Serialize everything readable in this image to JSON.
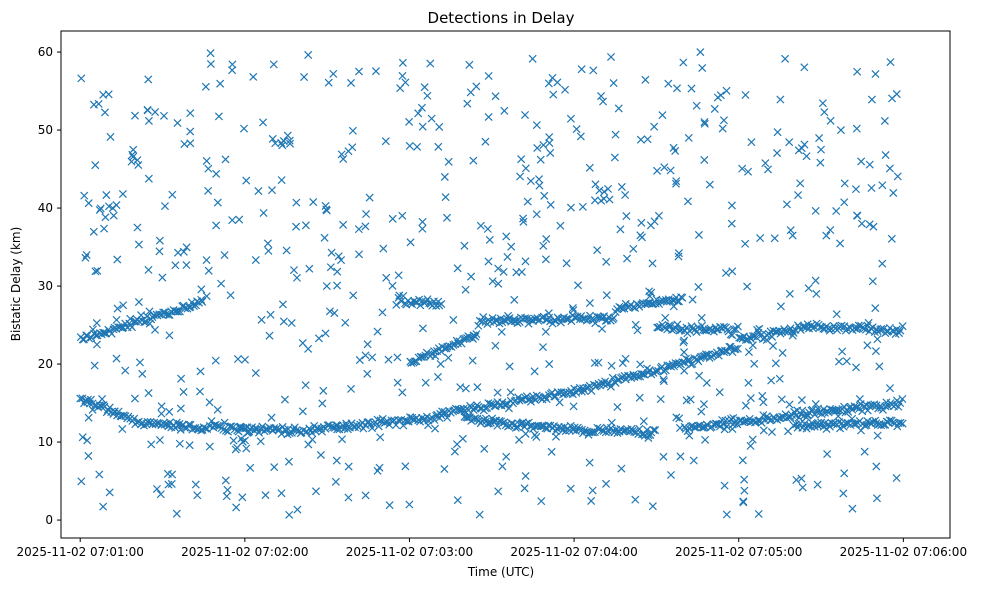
{
  "chart_data": {
    "type": "scatter",
    "title": "Detections in Delay",
    "xlabel": "Time (UTC)",
    "ylabel": "Bistatic Delay (km)",
    "marker": "x",
    "color": "#1f77b4",
    "grid": false,
    "legend": "none",
    "x_start": "2025-11-02 07:01:00",
    "x_end": "2025-11-02 07:06:00",
    "xlim": [
      "2025-11-02 07:00:53",
      "2025-11-02 07:06:17"
    ],
    "ylim": [
      -2.3,
      62.7
    ],
    "x_ticks": [
      "2025-11-02 07:01:00",
      "2025-11-02 07:02:00",
      "2025-11-02 07:03:00",
      "2025-11-02 07:04:00",
      "2025-11-02 07:05:00",
      "2025-11-02 07:06:00"
    ],
    "y_ticks": [
      0,
      10,
      20,
      30,
      40,
      50,
      60
    ],
    "tracks": [
      {
        "x": [
          "2025-11-02 07:01:00",
          "2025-11-02 07:01:45"
        ],
        "y": [
          23.2,
          28.0
        ]
      },
      {
        "x": [
          "2025-11-02 07:01:00",
          "2025-11-02 07:01:25"
        ],
        "y": [
          15.7,
          12.0
        ]
      },
      {
        "x": [
          "2025-11-02 07:01:25",
          "2025-11-02 07:02:20"
        ],
        "y": [
          12.3,
          11.5
        ]
      },
      {
        "x": [
          "2025-11-02 07:02:20",
          "2025-11-02 07:03:10"
        ],
        "y": [
          11.5,
          13.0
        ]
      },
      {
        "x": [
          "2025-11-02 07:03:10",
          "2025-11-02 07:04:00"
        ],
        "y": [
          13.5,
          16.5
        ]
      },
      {
        "x": [
          "2025-11-02 07:04:00",
          "2025-11-02 07:05:00"
        ],
        "y": [
          16.5,
          22.0
        ]
      },
      {
        "x": [
          "2025-11-02 07:03:20",
          "2025-11-02 07:04:00"
        ],
        "y": [
          13.0,
          11.5
        ]
      },
      {
        "x": [
          "2025-11-02 07:04:00",
          "2025-11-02 07:04:30"
        ],
        "y": [
          11.5,
          11.2
        ]
      },
      {
        "x": [
          "2025-11-02 07:04:40",
          "2025-11-02 07:06:00"
        ],
        "y": [
          11.8,
          15.0
        ]
      },
      {
        "x": [
          "2025-11-02 07:05:20",
          "2025-11-02 07:06:00"
        ],
        "y": [
          12.0,
          12.5
        ]
      },
      {
        "x": [
          "2025-11-02 07:02:55",
          "2025-11-02 07:03:12"
        ],
        "y": [
          28.0,
          27.8
        ]
      },
      {
        "x": [
          "2025-11-02 07:03:00",
          "2025-11-02 07:03:25"
        ],
        "y": [
          20.0,
          24.0
        ]
      },
      {
        "x": [
          "2025-11-02 07:03:25",
          "2025-11-02 07:04:15"
        ],
        "y": [
          25.5,
          26.0
        ]
      },
      {
        "x": [
          "2025-11-02 07:04:15",
          "2025-11-02 07:04:40"
        ],
        "y": [
          27.0,
          28.5
        ]
      },
      {
        "x": [
          "2025-11-02 07:04:30",
          "2025-11-02 07:05:00"
        ],
        "y": [
          24.8,
          24.3
        ]
      },
      {
        "x": [
          "2025-11-02 07:05:00",
          "2025-11-02 07:05:30"
        ],
        "y": [
          23.2,
          25.0
        ]
      },
      {
        "x": [
          "2025-11-02 07:05:30",
          "2025-11-02 07:06:00"
        ],
        "y": [
          24.8,
          24.2
        ]
      }
    ],
    "clusters": [
      {
        "x": "2025-11-02 07:01:20",
        "y": 46.5
      },
      {
        "x": "2025-11-02 07:01:10",
        "y": 40.0
      },
      {
        "x": "2025-11-02 07:02:15",
        "y": 48.0
      },
      {
        "x": "2025-11-02 07:03:50",
        "y": 47.8
      },
      {
        "x": "2025-11-02 07:04:10",
        "y": 41.5
      },
      {
        "x": "2025-11-02 07:02:00",
        "y": 11.5
      }
    ],
    "scatter_count": 650,
    "scatter_y_range": [
      0.5,
      60
    ]
  }
}
